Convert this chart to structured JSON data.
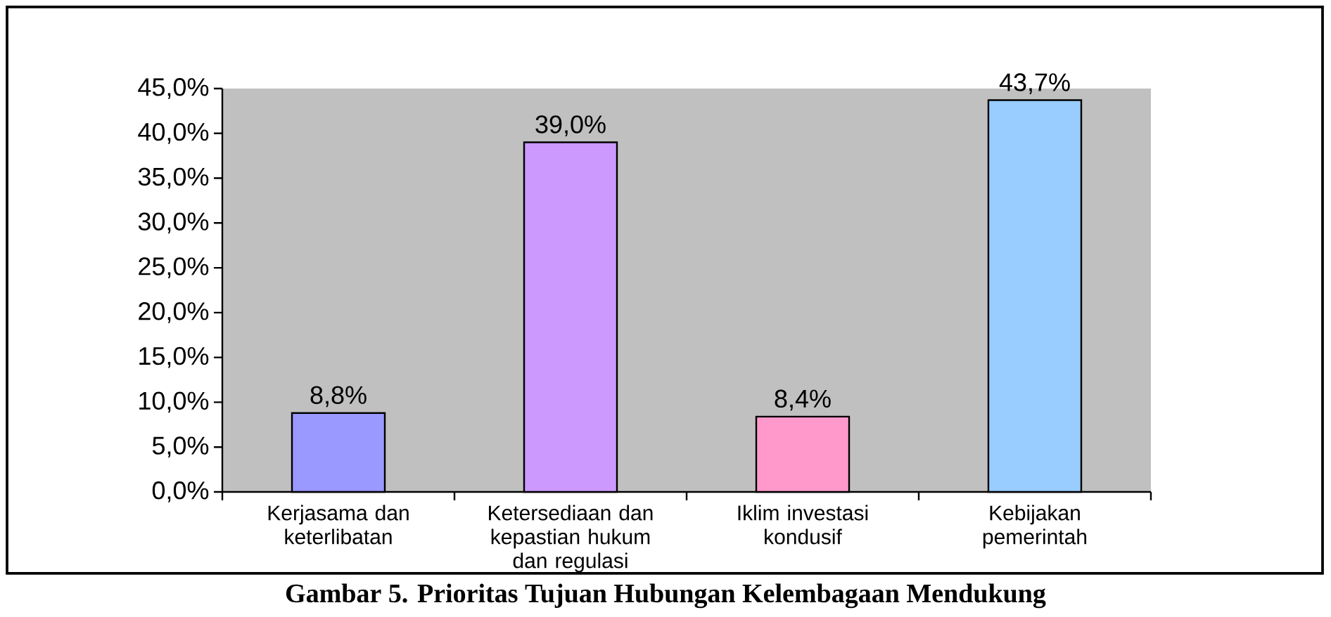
{
  "chart_data": {
    "type": "bar",
    "categories": [
      "Kerjasama dan keterlibatan",
      "Ketersediaan dan kepastian hukum dan regulasi",
      "Iklim investasi kondusif",
      "Kebijakan pemerintah"
    ],
    "values": [
      8.8,
      39.0,
      8.4,
      43.7
    ],
    "colors": [
      "#9999ff",
      "#cc99ff",
      "#ff99cc",
      "#99ccff"
    ],
    "value_labels": [
      "8,8%",
      "39,0%",
      "8,4%",
      "43,7%"
    ],
    "ylim": [
      0,
      45
    ],
    "yticks": [
      {
        "value": 0,
        "label": "0,0%"
      },
      {
        "value": 5,
        "label": "5,0%"
      },
      {
        "value": 10,
        "label": "10,0%"
      },
      {
        "value": 15,
        "label": "15,0%"
      },
      {
        "value": 20,
        "label": "20,0%"
      },
      {
        "value": 25,
        "label": "25,0%"
      },
      {
        "value": 30,
        "label": "30,0%"
      },
      {
        "value": 35,
        "label": "35,0%"
      },
      {
        "value": 40,
        "label": "40,0%"
      },
      {
        "value": 45,
        "label": "45,0%"
      }
    ],
    "annotations": [
      "Gambar 5. Prioritas Tujuan Hubungan Kelembagaan Mendukung"
    ]
  }
}
